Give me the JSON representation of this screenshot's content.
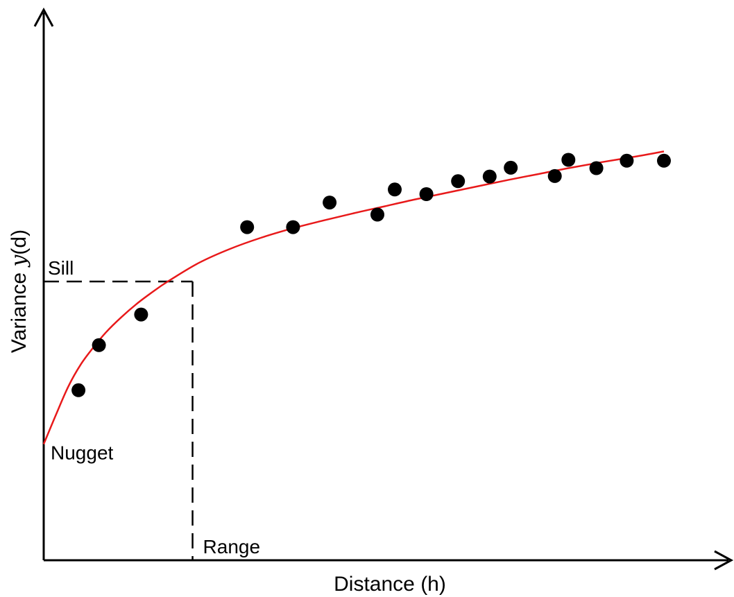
{
  "chart_data": {
    "type": "scatter",
    "title": "",
    "xlabel": "Distance (h)",
    "ylabel": "Variance y(d)",
    "ylabel_parts": {
      "before": "Variance ",
      "symbol": "y",
      "after": "(d)"
    },
    "xlim": [
      0,
      100
    ],
    "ylim": [
      0,
      100
    ],
    "grid": false,
    "legend": "none",
    "ticks": "none",
    "series": [
      {
        "kind": "points",
        "color": "#000000",
        "x": [
          5.6,
          8.9,
          15.7,
          32.8,
          40.2,
          46.1,
          53.8,
          56.6,
          61.7,
          66.8,
          71.9,
          75.3,
          82.4,
          84.6,
          89.1,
          94.0,
          100.0
        ],
        "y": [
          36.6,
          46.3,
          52.9,
          71.7,
          71.7,
          77.0,
          74.4,
          79.8,
          78.8,
          81.6,
          82.6,
          84.5,
          82.7,
          86.2,
          84.4,
          86.0,
          86.0
        ]
      },
      {
        "kind": "fitted-curve",
        "color": "#e8191a",
        "x": [
          0.0,
          2.0,
          4.0,
          6.0,
          8.0,
          10.0,
          12.5,
          15.0,
          17.5,
          20.0,
          25.0,
          30.0,
          35.0,
          40.0,
          45.0,
          50.0,
          55.0,
          60.0,
          65.0,
          70.0,
          75.0,
          80.0,
          85.0,
          90.0,
          95.0,
          100.0
        ],
        "y": [
          25.0,
          31.4,
          37.5,
          42.2,
          45.8,
          49.0,
          52.3,
          55.2,
          57.7,
          60.0,
          64.0,
          67.0,
          69.4,
          71.4,
          73.1,
          74.7,
          76.2,
          77.7,
          79.1,
          80.5,
          81.9,
          83.2,
          84.5,
          85.7,
          86.8,
          88.0
        ]
      }
    ],
    "annotations": {
      "nugget": {
        "text": "Nugget",
        "y": 25.0
      },
      "sill": {
        "text": "Sill",
        "y": 60.0
      },
      "range": {
        "text": "Range",
        "x": 24.0
      }
    }
  }
}
